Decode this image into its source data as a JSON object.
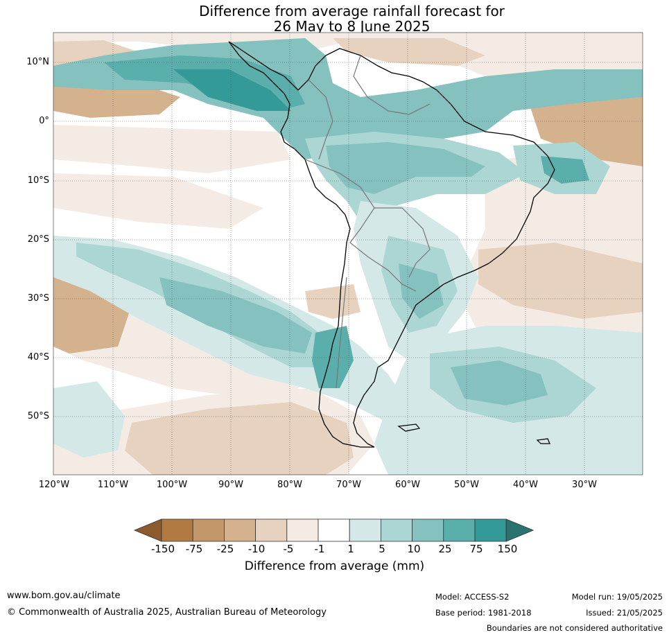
{
  "title": {
    "line1": "Difference from average rainfall forecast for",
    "line2": "26 May to 8 June 2025"
  },
  "map": {
    "lat_labels": [
      "10°N",
      "0°",
      "10°S",
      "20°S",
      "30°S",
      "40°S",
      "50°S"
    ],
    "lon_labels": [
      "120°W",
      "110°W",
      "100°W",
      "90°W",
      "80°W",
      "70°W",
      "60°W",
      "50°W",
      "40°W",
      "30°W"
    ],
    "region": "South America",
    "gridlines": true
  },
  "colorbar": {
    "title": "Difference from average (mm)",
    "ticks": [
      "-150",
      "-75",
      "-25",
      "-10",
      "-5",
      "-1",
      "1",
      "5",
      "10",
      "25",
      "75",
      "150"
    ],
    "colors": [
      "#8c5a2c",
      "#b07a42",
      "#c4976a",
      "#d4b28e",
      "#e6d2be",
      "#f4ebe4",
      "#ffffff",
      "#d4e9e7",
      "#acd6d3",
      "#85c1be",
      "#5aaeab",
      "#339a97",
      "#2a7370"
    ]
  },
  "footer": {
    "website": "www.bom.gov.au/climate",
    "copyright": "© Commonwealth of Australia 2025, Australian Bureau of Meteorology",
    "model": "Model: ACCESS-S2",
    "base_period": "Base period: 1981-2018",
    "model_run": "Model run: 19/05/2025",
    "issued": "Issued: 21/05/2025",
    "disclaimer": "Boundaries are not considered authoritative"
  }
}
